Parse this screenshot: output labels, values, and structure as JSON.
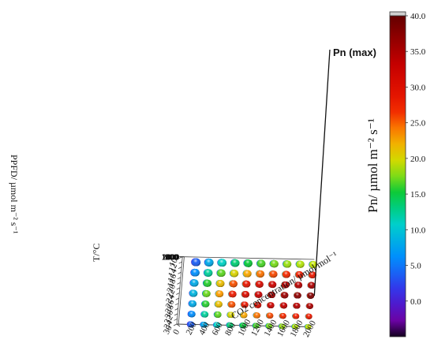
{
  "chart_data": {
    "type": "scatter",
    "projection": "3d",
    "axes": {
      "x": {
        "label": "CO2 concentration/ µmol mol⁻¹",
        "range": [
          0,
          2000
        ],
        "ticks": [
          "0",
          "200",
          "400",
          "600",
          "800",
          "1000",
          "1200",
          "1400",
          "1600",
          "1800",
          "2000"
        ]
      },
      "y": {
        "label": "T/°C",
        "range": [
          10,
          36
        ],
        "ticks": [
          "10",
          "12",
          "14",
          "16",
          "18",
          "20",
          "22",
          "24",
          "26",
          "28",
          "30",
          "32",
          "34",
          "36"
        ]
      },
      "z": {
        "label": "PPFD/ µmol m⁻² s⁻¹",
        "range": [
          0,
          2000
        ],
        "ticks": [
          "0",
          "100",
          "200",
          "400",
          "600",
          "800",
          "1000",
          "1200",
          "1400",
          "1600",
          "1800",
          "2000"
        ]
      }
    },
    "color_scale": {
      "label": "Pn/ µmol m⁻² s⁻¹",
      "min": -5,
      "max": 40,
      "ticks": [
        "40.0",
        "35.0",
        "30.0",
        "25.0",
        "20.0",
        "15.0",
        "10.0",
        "5.0",
        "0.0"
      ]
    },
    "grid": {
      "co2_levels": [
        200,
        400,
        600,
        800,
        1000,
        1200,
        1400,
        1600,
        1800,
        2000
      ],
      "temperature_levels": [
        12,
        16,
        20,
        24,
        28,
        32,
        36
      ],
      "ppfd_levels": [
        0,
        100,
        200,
        400,
        600,
        800,
        1000,
        1200,
        1400,
        1600,
        1800,
        2000
      ]
    },
    "annotation": {
      "text": "Pn (max)",
      "point": {
        "co2": 2000,
        "temperature": 24,
        "ppfd": 1800,
        "pn": 40.2
      }
    }
  }
}
